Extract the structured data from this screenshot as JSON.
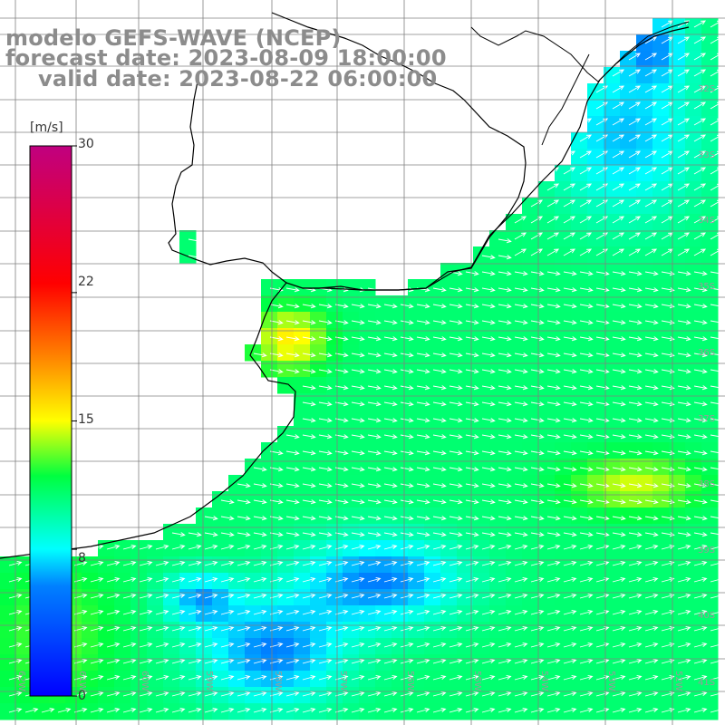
{
  "title": {
    "model": "modelo GEFS-WAVE (NCEP)",
    "forecast": "forecast date: 2023-08-09 18:00:00",
    "valid": "valid date: 2023-08-22 06:00:00"
  },
  "colorbar": {
    "unit": "[m/s]",
    "min": 0,
    "max": 30,
    "ticks": [
      "30",
      "22",
      "15",
      "8",
      "0"
    ],
    "tick_values": [
      30,
      22,
      15,
      8,
      0
    ],
    "colors": [
      "#0000ff",
      "#00c8ff",
      "#00ffff",
      "#00ff00",
      "#ffff00",
      "#ff8000",
      "#ff0000",
      "#c00080"
    ]
  },
  "lat_labels": [
    "32S",
    "33S",
    "34S",
    "35S",
    "36S",
    "37S",
    "38S",
    "39S",
    "40S",
    "41S"
  ],
  "lon_labels": [
    "62W",
    "61W",
    "60W",
    "59W",
    "58W",
    "57W",
    "56W",
    "55W",
    "54W",
    "53W",
    "52W",
    "51W"
  ],
  "colors": {
    "grid": "#808080",
    "coast": "#000000",
    "arrow": "#ffffff",
    "title": "#8c8c8c"
  }
}
